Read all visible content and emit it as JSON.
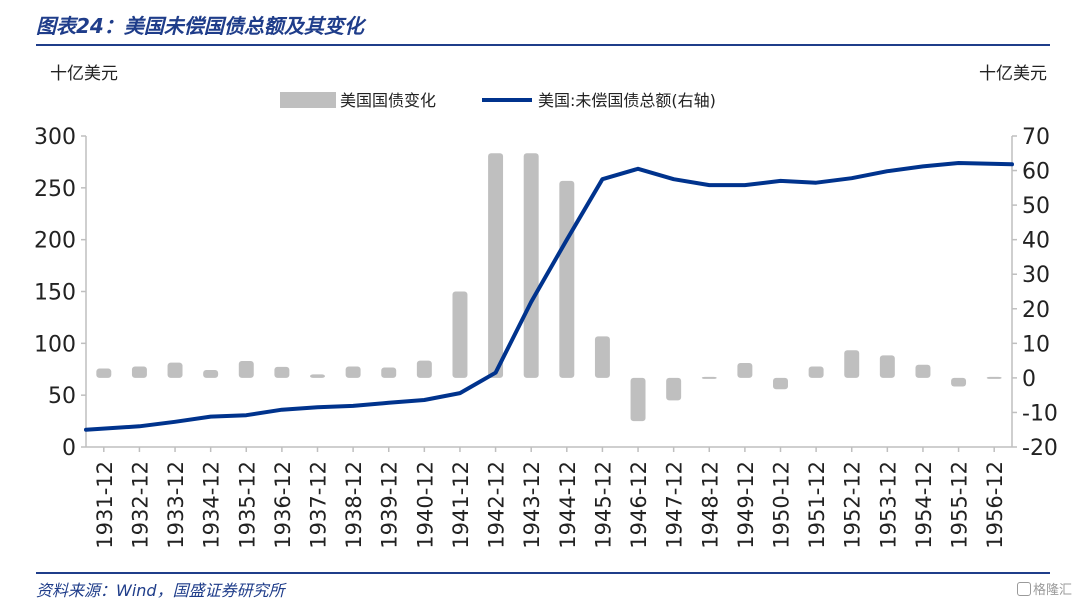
{
  "title": "图表24：美国未偿国债总额及其变化",
  "source": "资料来源：Wind，国盛证券研究所",
  "watermark": "格隆汇",
  "chart_data": {
    "type": "bar+line",
    "left_unit": "十亿美元",
    "right_unit": "十亿美元",
    "categories": [
      "1931-12",
      "1932-12",
      "1933-12",
      "1934-12",
      "1935-12",
      "1936-12",
      "1937-12",
      "1938-12",
      "1939-12",
      "1940-12",
      "1941-12",
      "1942-12",
      "1943-12",
      "1944-12",
      "1945-12",
      "1946-12",
      "1947-12",
      "1948-12",
      "1949-12",
      "1950-12",
      "1951-12",
      "1952-12",
      "1953-12",
      "1954-12",
      "1955-12",
      "1956-12"
    ],
    "series": [
      {
        "name": "美国国债变化",
        "kind": "bar",
        "axis": "right",
        "color": "#bfbfbf",
        "values": [
          2.7,
          3.3,
          4.4,
          2.3,
          4.9,
          3.2,
          1.0,
          3.3,
          3.0,
          5.0,
          25.0,
          65.0,
          65.0,
          57.0,
          12.0,
          -12.5,
          -6.5,
          0.2,
          4.3,
          -3.3,
          3.3,
          8.0,
          6.5,
          3.8,
          -2.5,
          0.0
        ]
      },
      {
        "name": "美国:未偿国债总额(右轴)",
        "kind": "line",
        "axis": "right",
        "color": "#00338d",
        "values": [
          -15.0,
          -14.0,
          -12.7,
          -11.2,
          -10.8,
          -9.2,
          -8.5,
          -8.1,
          -7.2,
          -6.4,
          -4.4,
          1.5,
          22.0,
          40.0,
          57.5,
          60.5,
          57.5,
          55.8,
          55.8,
          57.0,
          56.5,
          57.8,
          59.8,
          61.2,
          62.2,
          61.8
        ]
      }
    ],
    "y_left": {
      "min": 0,
      "max": 300,
      "ticks": [
        0,
        50,
        100,
        150,
        200,
        250,
        300
      ]
    },
    "y_right": {
      "min": -20,
      "max": 70,
      "ticks": [
        -20,
        -10,
        0,
        10,
        20,
        30,
        40,
        50,
        60,
        70
      ]
    },
    "legend_position": "top-center",
    "grid": false
  }
}
